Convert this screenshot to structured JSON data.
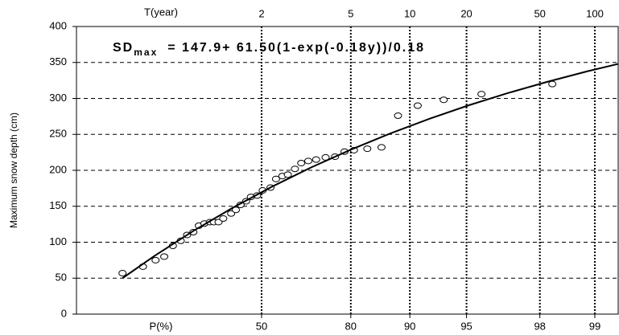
{
  "chart_data": {
    "type": "scatter",
    "ylabel": "Maximum snow depth (cm)",
    "xlabel": "P(%)",
    "x2label": "T(year)",
    "annotation": {
      "parts": [
        "SD",
        "max",
        "=   147.9+ 61.50(1-exp(-0.18y))/0.18"
      ]
    },
    "xlim": [
      -1.985,
      4.897
    ],
    "ylim": [
      0,
      400
    ],
    "yticks": [
      0,
      50,
      100,
      150,
      200,
      250,
      300,
      350,
      400
    ],
    "xticks": [
      {
        "value": 0.3665,
        "label": "50"
      },
      {
        "value": 1.4999,
        "label": "80"
      },
      {
        "value": 2.2504,
        "label": "90"
      },
      {
        "value": 2.9702,
        "label": "95"
      },
      {
        "value": 3.9019,
        "label": "98"
      },
      {
        "value": 4.6001,
        "label": "99"
      }
    ],
    "x2ticks": [
      {
        "value": 0.3665,
        "label": "2"
      },
      {
        "value": 1.4999,
        "label": "5"
      },
      {
        "value": 2.2504,
        "label": "10"
      },
      {
        "value": 2.9702,
        "label": "20"
      },
      {
        "value": 3.9019,
        "label": "50"
      },
      {
        "value": 4.6001,
        "label": "100"
      }
    ],
    "grid": true,
    "series": [
      {
        "type": "scatter",
        "color": "#000000",
        "x": [
          -1.4,
          -1.14,
          -0.98,
          -0.87,
          -0.76,
          -0.66,
          -0.58,
          -0.5,
          -0.43,
          -0.36,
          -0.29,
          -0.24,
          -0.18,
          -0.12,
          -0.02,
          0.04,
          0.1,
          0.17,
          0.23,
          0.31,
          0.38,
          0.48,
          0.55,
          0.63,
          0.7,
          0.79,
          0.87,
          0.96,
          1.06,
          1.18,
          1.3,
          1.42,
          1.54,
          1.71,
          1.89,
          2.1,
          2.35,
          2.68,
          3.16,
          4.06
        ],
        "values": [
          57,
          66,
          75,
          80,
          95,
          102,
          110,
          114,
          123,
          126,
          128,
          128,
          128,
          133,
          140,
          145,
          152,
          157,
          163,
          165,
          172,
          176,
          188,
          192,
          194,
          202,
          210,
          213,
          215,
          218,
          219,
          226,
          228,
          230,
          232,
          276,
          290,
          298,
          306,
          320
        ]
      },
      {
        "type": "line",
        "color": "#000000",
        "x": [
          -1.4,
          -1,
          -0.5,
          0,
          0.5,
          1,
          1.5,
          2,
          2.5,
          3,
          3.5,
          4,
          4.5,
          4.897
        ],
        "values": [
          50.0,
          80.5,
          115.7,
          147.9,
          177.3,
          204.2,
          228.7,
          251.2,
          271.7,
          290.5,
          307.6,
          323.2,
          337.6,
          348.0
        ]
      }
    ]
  }
}
